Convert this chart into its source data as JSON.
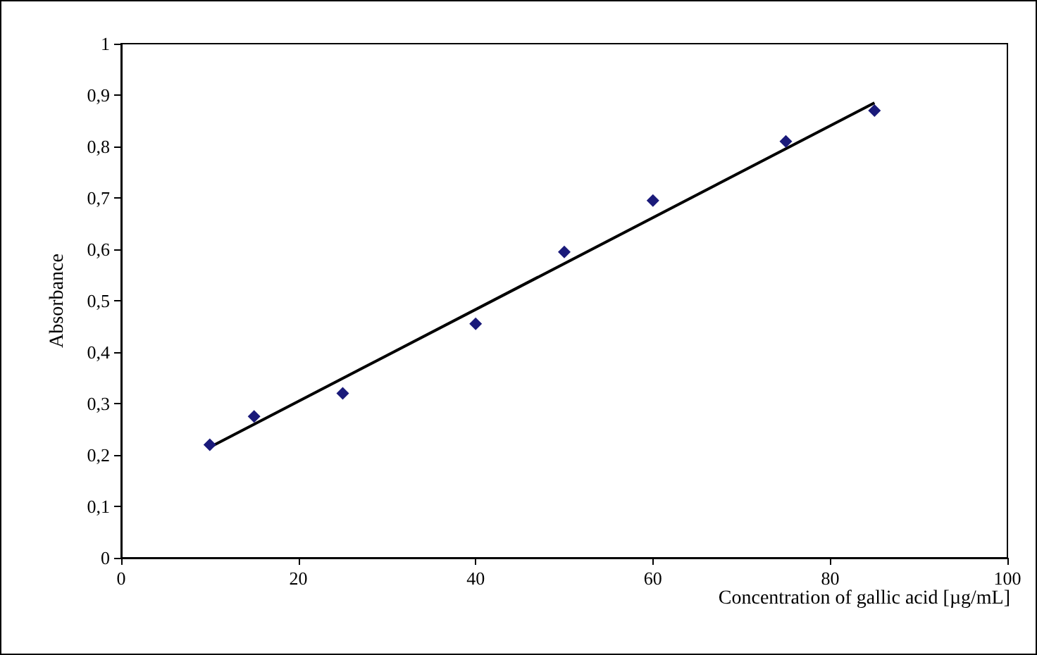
{
  "chart_data": {
    "type": "scatter",
    "xlabel": "Concentration of gallic acid [µg/mL]",
    "ylabel": "Absorbance",
    "marker": "diamond",
    "grid": false,
    "xlim": [
      0,
      100
    ],
    "xticks": [
      0,
      20,
      40,
      60,
      80,
      100
    ],
    "ylim": [
      0,
      1
    ],
    "yticks": [
      0,
      {
        "value": 0.1,
        "label": "0,1"
      },
      {
        "value": 0.2,
        "label": "0,2"
      },
      {
        "value": 0.3,
        "label": "0,3"
      },
      {
        "value": 0.4,
        "label": "0,4"
      },
      {
        "value": 0.5,
        "label": "0,5"
      },
      {
        "value": 0.6,
        "label": "0,6"
      },
      {
        "value": 0.7,
        "label": "0,7"
      },
      {
        "value": 0.8,
        "label": "0,8"
      },
      {
        "value": 0.9,
        "label": "0,9"
      },
      1
    ],
    "series": [
      {
        "color": "#1a1a7a",
        "x": [
          10,
          15,
          25,
          40,
          50,
          60,
          75,
          85
        ],
        "values": [
          0.22,
          0.275,
          0.32,
          0.455,
          0.595,
          0.695,
          0.81,
          0.87
        ]
      },
      {
        "type": "line",
        "color": "#000000",
        "marker": "none",
        "line_style": "solid",
        "x": [
          10,
          85
        ],
        "values": [
          0.215,
          0.885
        ]
      }
    ]
  }
}
